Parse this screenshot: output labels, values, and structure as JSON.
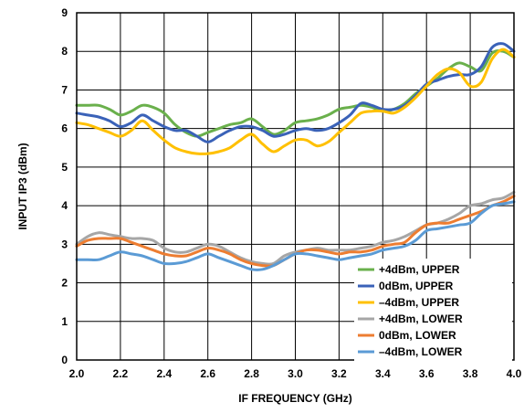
{
  "chart_data": {
    "type": "line",
    "title": "",
    "xlabel": "IF FREQUENCY (GHz)",
    "ylabel": "INPUT IP3 (dBm)",
    "xlim": [
      2.0,
      4.0
    ],
    "ylim": [
      0,
      9
    ],
    "x_ticks": [
      "2.0",
      "2.2",
      "2.4",
      "2.6",
      "2.8",
      "3.0",
      "3.2",
      "3.4",
      "3.6",
      "3.8",
      "4.0"
    ],
    "y_ticks": [
      "0",
      "1",
      "2",
      "3",
      "4",
      "5",
      "6",
      "7",
      "8",
      "9"
    ],
    "grid": true,
    "legend_position": "bottom-right",
    "x": [
      2.0,
      2.05,
      2.1,
      2.15,
      2.2,
      2.25,
      2.3,
      2.35,
      2.4,
      2.45,
      2.5,
      2.55,
      2.6,
      2.65,
      2.7,
      2.75,
      2.8,
      2.85,
      2.9,
      2.95,
      3.0,
      3.05,
      3.1,
      3.15,
      3.2,
      3.25,
      3.3,
      3.35,
      3.4,
      3.45,
      3.5,
      3.55,
      3.6,
      3.65,
      3.7,
      3.75,
      3.8,
      3.85,
      3.9,
      3.95,
      4.0
    ],
    "series": [
      {
        "name": "+4dBm, UPPER",
        "color": "#6ab04c",
        "values": [
          6.6,
          6.6,
          6.6,
          6.5,
          6.35,
          6.45,
          6.6,
          6.55,
          6.4,
          6.1,
          5.9,
          5.8,
          5.9,
          6.0,
          6.1,
          6.15,
          6.25,
          6.05,
          5.85,
          5.95,
          6.15,
          6.2,
          6.25,
          6.35,
          6.5,
          6.55,
          6.6,
          6.55,
          6.45,
          6.5,
          6.65,
          6.9,
          7.1,
          7.3,
          7.55,
          7.7,
          7.6,
          7.5,
          7.95,
          8.0,
          7.85
        ]
      },
      {
        "name": "0dBm, UPPER",
        "color": "#3a62b8",
        "values": [
          6.4,
          6.35,
          6.3,
          6.2,
          6.05,
          6.15,
          6.35,
          6.2,
          6.05,
          5.95,
          5.95,
          5.8,
          5.65,
          5.8,
          5.95,
          6.05,
          6.05,
          5.95,
          5.8,
          5.85,
          5.95,
          6.0,
          5.95,
          6.0,
          6.15,
          6.35,
          6.65,
          6.6,
          6.5,
          6.5,
          6.6,
          6.85,
          7.15,
          7.25,
          7.35,
          7.4,
          7.4,
          7.6,
          8.1,
          8.2,
          8.0
        ]
      },
      {
        "name": "–4dBm, UPPER",
        "color": "#ffc000",
        "values": [
          6.15,
          6.1,
          6.0,
          5.9,
          5.8,
          5.95,
          6.2,
          5.95,
          5.7,
          5.5,
          5.4,
          5.35,
          5.35,
          5.4,
          5.5,
          5.7,
          5.85,
          5.6,
          5.4,
          5.55,
          5.7,
          5.7,
          5.55,
          5.65,
          5.9,
          6.15,
          6.4,
          6.45,
          6.45,
          6.4,
          6.55,
          6.8,
          7.1,
          7.4,
          7.55,
          7.45,
          7.1,
          7.2,
          7.8,
          8.05,
          7.85
        ]
      },
      {
        "name": "+4dBm, LOWER",
        "color": "#a6a6a6",
        "values": [
          3.0,
          3.2,
          3.3,
          3.25,
          3.2,
          3.15,
          3.15,
          3.1,
          2.9,
          2.8,
          2.8,
          2.9,
          3.0,
          2.95,
          2.8,
          2.65,
          2.55,
          2.5,
          2.5,
          2.7,
          2.8,
          2.85,
          2.9,
          2.85,
          2.85,
          2.85,
          2.9,
          2.95,
          3.05,
          3.1,
          3.2,
          3.35,
          3.5,
          3.55,
          3.65,
          3.8,
          4.0,
          4.05,
          4.15,
          4.2,
          4.35
        ]
      },
      {
        "name": "0dBm, LOWER",
        "color": "#ed7d31",
        "values": [
          2.95,
          3.1,
          3.15,
          3.15,
          3.15,
          3.05,
          2.95,
          2.85,
          2.75,
          2.7,
          2.7,
          2.8,
          2.9,
          2.85,
          2.75,
          2.6,
          2.5,
          2.45,
          2.45,
          2.6,
          2.75,
          2.85,
          2.85,
          2.8,
          2.75,
          2.8,
          2.8,
          2.85,
          2.95,
          3.0,
          3.05,
          3.3,
          3.5,
          3.55,
          3.55,
          3.65,
          3.75,
          3.85,
          4.0,
          4.1,
          4.25
        ]
      },
      {
        "name": "–4dBm, LOWER",
        "color": "#5b9bd5",
        "values": [
          2.6,
          2.6,
          2.6,
          2.7,
          2.8,
          2.75,
          2.7,
          2.6,
          2.5,
          2.5,
          2.55,
          2.65,
          2.75,
          2.65,
          2.55,
          2.45,
          2.35,
          2.35,
          2.45,
          2.6,
          2.75,
          2.75,
          2.7,
          2.65,
          2.6,
          2.65,
          2.7,
          2.75,
          2.85,
          2.9,
          2.95,
          3.1,
          3.35,
          3.4,
          3.45,
          3.5,
          3.55,
          3.8,
          4.0,
          4.05,
          4.1
        ]
      }
    ]
  }
}
